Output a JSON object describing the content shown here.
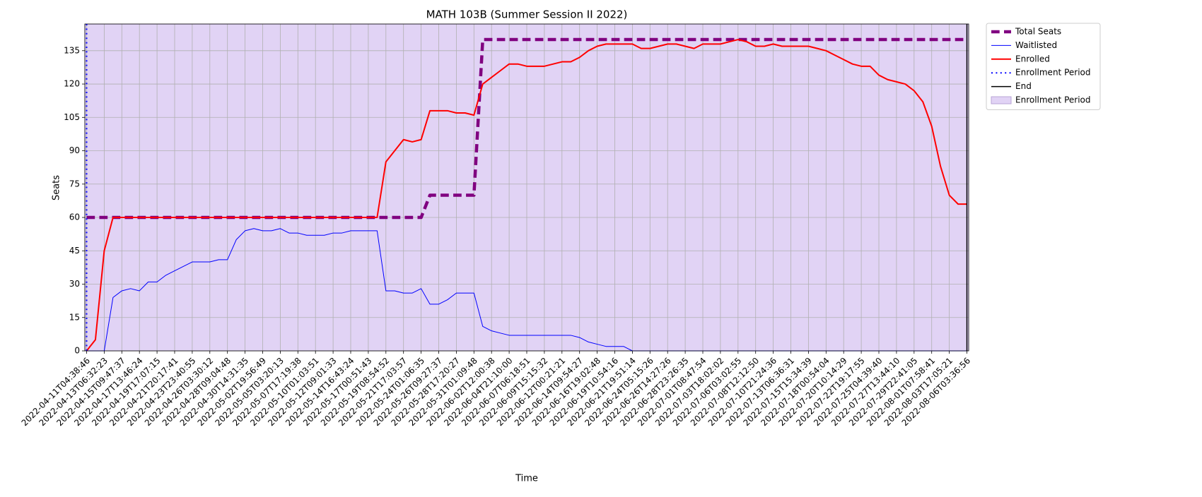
{
  "chart_data": {
    "type": "line",
    "title": "MATH 103B (Summer Session II 2022)",
    "xlabel": "Time",
    "ylabel": "Seats",
    "categories": [
      "2022-04-11T04:38:46",
      null,
      "2022-04-13T06:32:23",
      null,
      "2022-04-15T09:47:37",
      null,
      "2022-04-17T13:46:24",
      null,
      "2022-04-19T17:07:15",
      null,
      "2022-04-21T20:17:41",
      null,
      "2022-04-23T23:40:55",
      null,
      "2022-04-26T03:30:12",
      null,
      "2022-04-28T09:04:48",
      null,
      "2022-04-30T14:31:35",
      null,
      "2022-05-02T19:56:49",
      null,
      "2022-05-05T03:20:13",
      null,
      "2022-05-07T17:19:38",
      null,
      "2022-05-10T01:03:51",
      null,
      "2022-05-12T09:01:33",
      null,
      "2022-05-14T16:43:24",
      null,
      "2022-05-17T00:51:43",
      null,
      "2022-05-19T08:54:52",
      null,
      "2022-05-21T17:03:57",
      null,
      "2022-05-24T01:06:35",
      null,
      "2022-05-26T09:27:37",
      null,
      "2022-05-28T17:20:27",
      null,
      "2022-05-31T01:09:48",
      null,
      "2022-06-02T12:00:38",
      null,
      "2022-06-04T21:10:00",
      null,
      "2022-06-07T06:18:51",
      null,
      "2022-06-09T15:15:32",
      null,
      "2022-06-12T00:21:21",
      null,
      "2022-06-14T09:54:27",
      null,
      "2022-06-16T19:02:48",
      null,
      "2022-06-19T10:54:16",
      null,
      "2022-06-21T19:51:14",
      null,
      "2022-06-24T05:15:26",
      null,
      "2022-06-26T14:27:26",
      null,
      "2022-06-28T23:26:35",
      null,
      "2022-07-01T08:47:54",
      null,
      "2022-07-03T18:02:02",
      null,
      "2022-07-06T03:02:55",
      null,
      "2022-07-08T12:12:50",
      null,
      "2022-07-10T21:24:36",
      null,
      "2022-07-13T06:36:31",
      null,
      "2022-07-15T15:34:39",
      null,
      "2022-07-18T00:54:04",
      null,
      "2022-07-20T10:14:29",
      null,
      "2022-07-22T19:17:55",
      null,
      "2022-07-25T04:39:40",
      null,
      "2022-07-27T13:44:10",
      null,
      "2022-07-29T22:41:05",
      null,
      "2022-08-01T07:58:41",
      null,
      "2022-08-03T17:05:21",
      null,
      "2022-08-06T03:36:56"
    ],
    "xlim": [
      -0.2,
      100.2
    ],
    "ylim": [
      0,
      147
    ],
    "yticks": [
      0,
      15,
      30,
      45,
      60,
      75,
      90,
      105,
      120,
      135
    ],
    "grid": true,
    "legend": "outside upper right",
    "series": [
      {
        "name": "Total Seats",
        "kind": "line",
        "style": "dashed",
        "linewidth": 4.5,
        "color": "#800080",
        "values": [
          60,
          60,
          60,
          60,
          60,
          60,
          60,
          60,
          60,
          60,
          60,
          60,
          60,
          60,
          60,
          60,
          60,
          60,
          60,
          60,
          60,
          60,
          60,
          60,
          60,
          60,
          60,
          60,
          60,
          60,
          60,
          60,
          60,
          60,
          60,
          60,
          60,
          60,
          60,
          70,
          70,
          70,
          70,
          70,
          70,
          140,
          140,
          140,
          140,
          140,
          140,
          140,
          140,
          140,
          140,
          140,
          140,
          140,
          140,
          140,
          140,
          140,
          140,
          140,
          140,
          140,
          140,
          140,
          140,
          140,
          140,
          140,
          140,
          140,
          140,
          140,
          140,
          140,
          140,
          140,
          140,
          140,
          140,
          140,
          140,
          140,
          140,
          140,
          140,
          140,
          140,
          140,
          140,
          140,
          140,
          140,
          140,
          140,
          140,
          140,
          140
        ]
      },
      {
        "name": "Waitlisted",
        "kind": "line",
        "style": "solid",
        "linewidth": 1,
        "color": "#0000ff",
        "values": [
          0,
          0,
          0,
          24,
          27,
          28,
          27,
          31,
          31,
          34,
          36,
          38,
          40,
          40,
          40,
          41,
          41,
          50,
          54,
          55,
          54,
          54,
          55,
          53,
          53,
          52,
          52,
          52,
          53,
          53,
          54,
          54,
          54,
          54,
          27,
          27,
          26,
          26,
          28,
          21,
          21,
          23,
          26,
          26,
          26,
          11,
          9,
          8,
          7,
          7,
          7,
          7,
          7,
          7,
          7,
          7,
          6,
          4,
          3,
          2,
          2,
          2,
          0,
          0,
          0,
          0,
          0,
          0,
          0,
          0,
          0,
          0,
          0,
          0,
          0,
          0,
          0,
          0,
          0,
          0,
          0,
          0,
          0,
          0,
          0,
          0,
          0,
          0,
          0,
          0,
          0,
          0,
          0,
          0,
          0,
          0,
          0,
          0,
          0,
          0,
          0
        ]
      },
      {
        "name": "Enrolled",
        "kind": "line",
        "style": "solid",
        "linewidth": 2,
        "color": "#ff0000",
        "values": [
          0,
          5,
          45,
          60,
          60,
          60,
          60,
          60,
          60,
          60,
          60,
          60,
          60,
          60,
          60,
          60,
          60,
          60,
          60,
          60,
          60,
          60,
          60,
          60,
          60,
          60,
          60,
          60,
          60,
          60,
          60,
          60,
          60,
          60,
          85,
          90,
          95,
          94,
          95,
          108,
          108,
          108,
          107,
          107,
          106,
          120,
          123,
          126,
          129,
          129,
          128,
          128,
          128,
          129,
          130,
          130,
          132,
          135,
          137,
          138,
          138,
          138,
          138,
          136,
          136,
          137,
          138,
          138,
          137,
          136,
          138,
          138,
          138,
          139,
          140,
          139,
          137,
          137,
          138,
          137,
          137,
          137,
          137,
          136,
          135,
          133,
          131,
          129,
          128,
          128,
          124,
          122,
          121,
          120,
          117,
          112,
          101,
          83,
          70,
          66,
          66
        ]
      },
      {
        "name": "Enrollment Period",
        "kind": "vline",
        "style": "dotted",
        "linewidth": 2,
        "color": "#0000ff",
        "x": 0
      },
      {
        "name": "End",
        "kind": "vline",
        "style": "solid",
        "linewidth": 1.5,
        "color": "#000000",
        "x": 100
      },
      {
        "name": "Enrollment Period",
        "kind": "span",
        "color": "#e1d3f5",
        "span": [
          -0.2,
          100.2
        ]
      }
    ]
  }
}
